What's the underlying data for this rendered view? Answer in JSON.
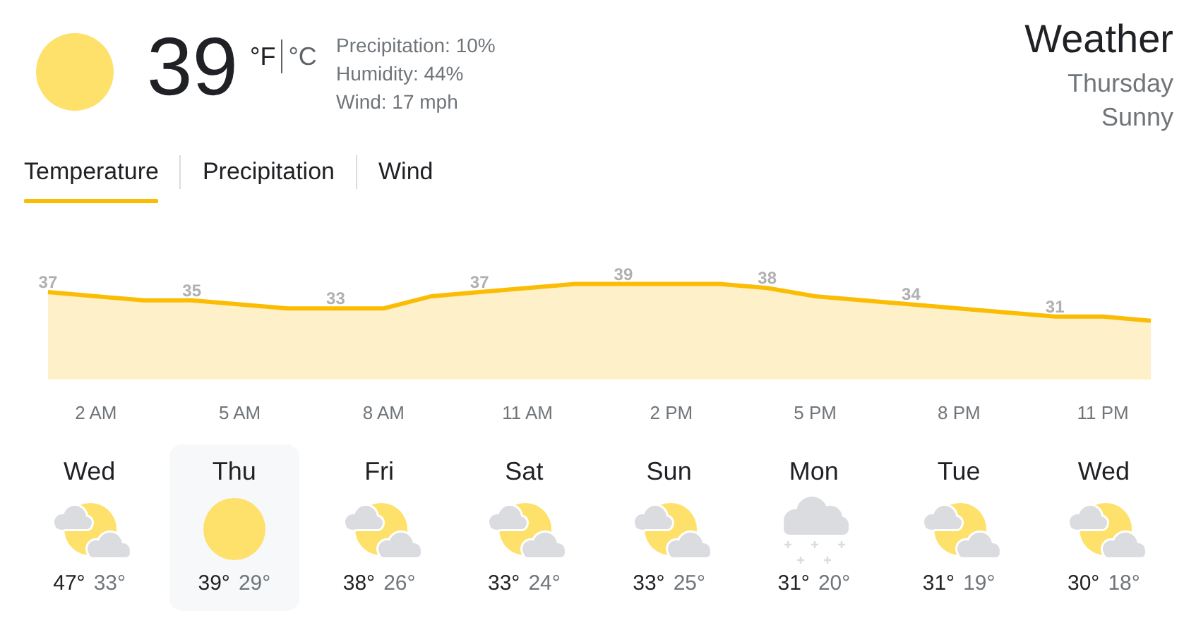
{
  "chart_data": [
    {
      "type": "other",
      "title": "Weather",
      "subtitle": "Thursday",
      "annotations": [
        "39",
        "°F",
        "°C",
        "Precipitation: 10%",
        "Humidity: 44%",
        "Wind: 17 mph",
        "Sunny",
        "Temperature",
        "Precipitation",
        "Wind"
      ]
    },
    {
      "type": "area",
      "categories": [
        null,
        "2 AM",
        null,
        null,
        "5 AM",
        null,
        null,
        "8 AM",
        null,
        null,
        "11 AM",
        null,
        null,
        "2 PM",
        null,
        null,
        "5 PM",
        null,
        null,
        "8 PM",
        null,
        null,
        "11 PM",
        null
      ],
      "values": [
        37,
        36,
        35,
        35,
        34,
        33,
        33,
        33,
        36,
        37,
        38,
        39,
        39,
        39,
        39,
        38,
        36,
        35,
        34,
        33,
        32,
        31,
        31,
        30
      ],
      "value_labels": [
        "37",
        null,
        null,
        "35",
        null,
        null,
        "33",
        null,
        null,
        "37",
        null,
        null,
        "39",
        null,
        null,
        "38",
        null,
        null,
        "34",
        null,
        null,
        "31",
        null,
        null
      ],
      "color": "#fbbc04",
      "line_style": "solid"
    },
    {
      "type": "other",
      "categories": [
        "Wed",
        "Thu",
        "Fri",
        "Sat",
        "Sun",
        "Mon",
        "Tue",
        "Wed"
      ],
      "annotations": [
        "47°",
        "33°",
        "39°",
        "29°",
        "38°",
        "26°",
        "33°",
        "24°",
        "33°",
        "25°",
        "31°",
        "20°",
        "31°",
        "19°",
        "30°",
        "18°"
      ]
    }
  ]
}
